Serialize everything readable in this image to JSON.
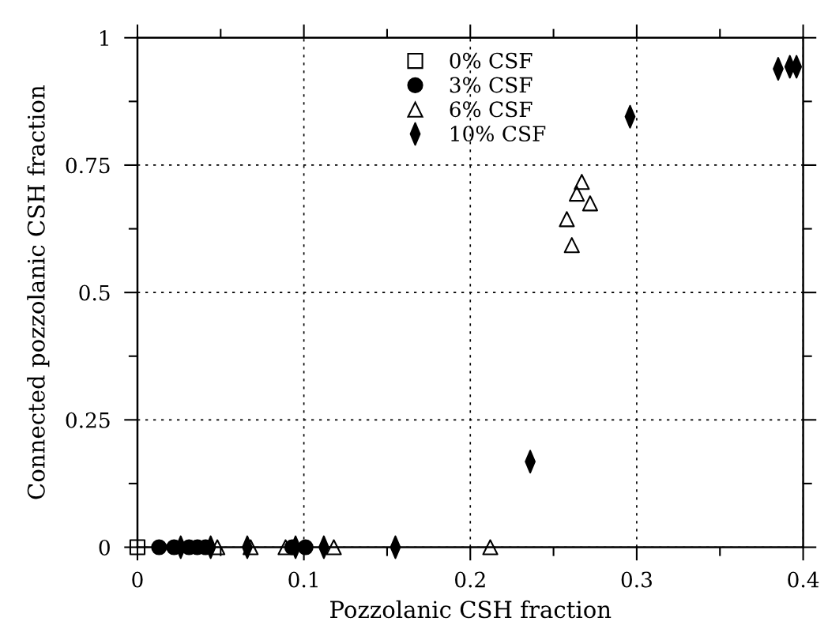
{
  "chart_data": {
    "type": "scatter",
    "xlabel": "Pozzolanic CSH fraction",
    "ylabel": "Connected pozzolanic CSH fraction",
    "xlim": [
      0,
      0.4
    ],
    "ylim": [
      0,
      1
    ],
    "xticks": [
      0,
      0.1,
      0.2,
      0.3,
      0.4
    ],
    "yticks": [
      0,
      0.25,
      0.5,
      0.75,
      1
    ],
    "grid": true,
    "legend": "top",
    "series": [
      {
        "name": "0% CSF",
        "color": "#000000",
        "marker": "square",
        "x": [
          0
        ],
        "values": [
          0
        ]
      },
      {
        "name": "3% CSF",
        "color": "#000000",
        "marker": "circle",
        "x": [
          0.013,
          0.022,
          0.031,
          0.036,
          0.041,
          0.093,
          0.101
        ],
        "values": [
          0,
          0,
          0,
          0,
          0,
          0,
          0
        ]
      },
      {
        "name": "6% CSF",
        "color": "#000000",
        "marker": "triangle",
        "x": [
          0.048,
          0.068,
          0.089,
          0.118,
          0.212,
          0.258,
          0.261,
          0.264,
          0.267,
          0.272
        ],
        "values": [
          0,
          0,
          0,
          0,
          0,
          0.644,
          0.593,
          0.694,
          0.717,
          0.675
        ]
      },
      {
        "name": "10% CSF",
        "color": "#000000",
        "marker": "diamond",
        "x": [
          0.026,
          0.044,
          0.066,
          0.095,
          0.112,
          0.155,
          0.236,
          0.296,
          0.385,
          0.392,
          0.396
        ],
        "values": [
          0,
          0,
          0,
          0,
          0,
          0,
          0.168,
          0.845,
          0.939,
          0.943,
          0.943
        ]
      }
    ]
  }
}
